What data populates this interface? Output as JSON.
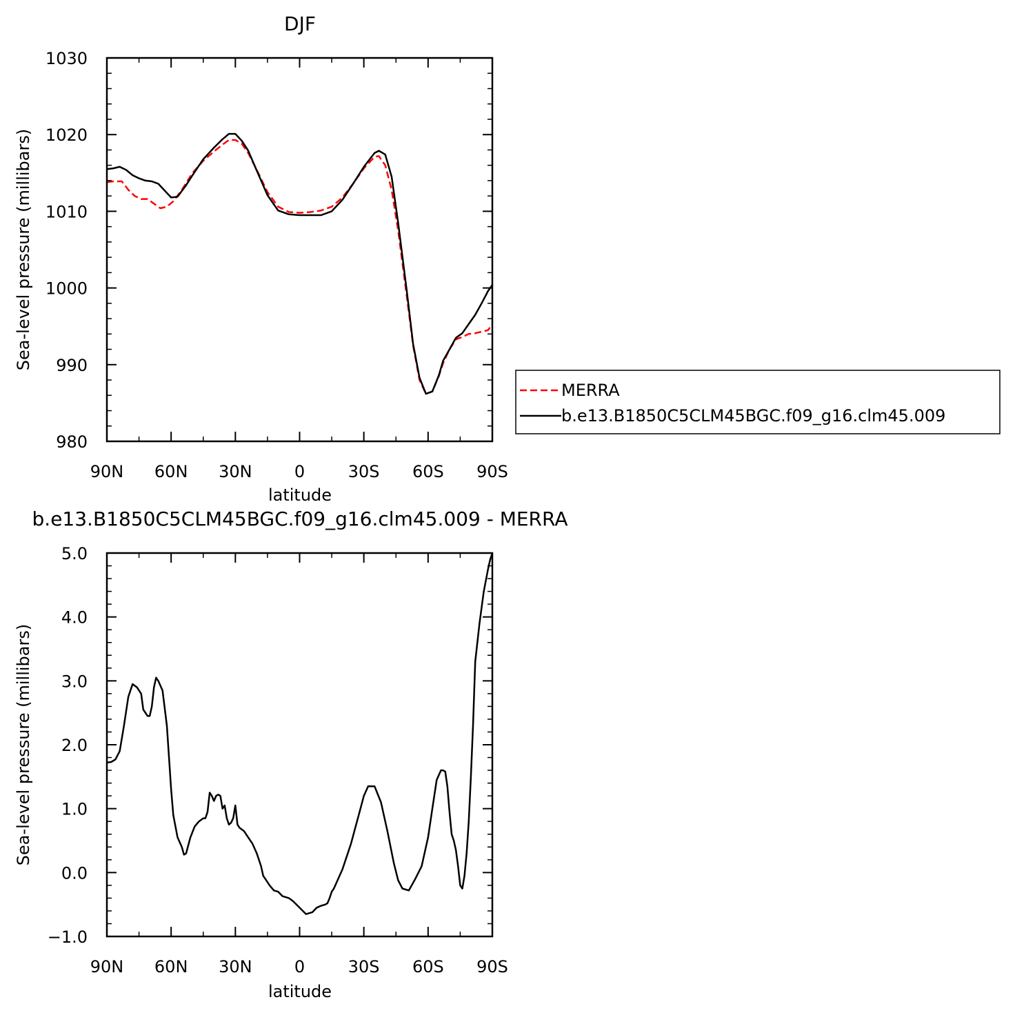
{
  "chart_data": [
    {
      "type": "line",
      "title": "DJF",
      "xlabel": "latitude",
      "ylabel": "Sea-level pressure (millibars)",
      "xlim": [
        90,
        -90
      ],
      "ylim": [
        980,
        1030
      ],
      "x_ticks": [
        90,
        60,
        30,
        0,
        -30,
        -60,
        -90
      ],
      "x_tick_labels": [
        "90N",
        "60N",
        "30N",
        "0",
        "30S",
        "60S",
        "90S"
      ],
      "y_ticks": [
        980,
        990,
        1000,
        1010,
        1020,
        1030
      ],
      "y_tick_labels": [
        "980",
        "990",
        "1000",
        "1010",
        "1020",
        "1030"
      ],
      "legend": {
        "placement": "right"
      },
      "series": [
        {
          "name": "MERRA",
          "color": "#ff0000",
          "dash": "dashed",
          "x": [
            90,
            87,
            83,
            80,
            77,
            74,
            71,
            68,
            65,
            62,
            59,
            55,
            50,
            45,
            40,
            36,
            33,
            30,
            27,
            24,
            20,
            15,
            10,
            5,
            0,
            -5,
            -10,
            -15,
            -20,
            -25,
            -30,
            -35,
            -37,
            -40,
            -43,
            -46,
            -50,
            -53,
            -56,
            -59,
            -62,
            -65,
            -67,
            -70,
            -73,
            -76,
            -79,
            -82,
            -85,
            -88,
            -90
          ],
          "values": [
            1013.8,
            1013.9,
            1013.9,
            1012.8,
            1012.0,
            1011.6,
            1011.6,
            1011.0,
            1010.4,
            1010.6,
            1011.3,
            1012.8,
            1015.0,
            1016.6,
            1017.8,
            1018.7,
            1019.3,
            1019.3,
            1018.8,
            1017.6,
            1015.4,
            1012.5,
            1010.6,
            1009.9,
            1009.8,
            1009.9,
            1010.1,
            1010.6,
            1011.8,
            1013.6,
            1015.6,
            1017.1,
            1017.2,
            1016.0,
            1012.8,
            1007.5,
            999.0,
            992.5,
            988.0,
            986.2,
            986.5,
            988.5,
            990.2,
            992.0,
            993.3,
            993.6,
            994.0,
            994.1,
            994.3,
            994.5,
            995.3
          ]
        },
        {
          "name": "b.e13.B1850C5CLM45BGC.f09_g16.clm45.009",
          "color": "#000000",
          "dash": "solid",
          "x": [
            90,
            87,
            84,
            81,
            78,
            75,
            72,
            69,
            66,
            63,
            60,
            57,
            53,
            50,
            45,
            40,
            36,
            33,
            30,
            27,
            24,
            20,
            15,
            10,
            5,
            0,
            -5,
            -10,
            -15,
            -20,
            -25,
            -30,
            -35,
            -37,
            -40,
            -43,
            -46,
            -50,
            -53,
            -56,
            -59,
            -62,
            -65,
            -67,
            -70,
            -73,
            -76,
            -79,
            -82,
            -85,
            -88,
            -90
          ],
          "values": [
            1015.5,
            1015.6,
            1015.8,
            1015.4,
            1014.7,
            1014.3,
            1014.0,
            1013.9,
            1013.6,
            1012.7,
            1011.8,
            1011.9,
            1013.4,
            1014.7,
            1016.8,
            1018.3,
            1019.4,
            1020.1,
            1020.1,
            1019.2,
            1017.9,
            1015.3,
            1012.1,
            1010.1,
            1009.6,
            1009.5,
            1009.5,
            1009.5,
            1010.0,
            1011.5,
            1013.6,
            1015.8,
            1017.6,
            1017.9,
            1017.4,
            1014.5,
            1008.5,
            999.7,
            992.7,
            988.3,
            986.2,
            986.5,
            988.6,
            990.5,
            992.0,
            993.5,
            994.1,
            995.3,
            996.5,
            998.0,
            999.6,
            1000.4
          ]
        }
      ]
    },
    {
      "type": "line",
      "title": "b.e13.B1850C5CLM45BGC.f09_g16.clm45.009 - MERRA",
      "xlabel": "latitude",
      "ylabel": "Sea-level pressure (millibars)",
      "xlim": [
        90,
        -90
      ],
      "ylim": [
        -1.0,
        5.0
      ],
      "x_ticks": [
        90,
        60,
        30,
        0,
        -30,
        -60,
        -90
      ],
      "x_tick_labels": [
        "90N",
        "60N",
        "30N",
        "0",
        "30S",
        "60S",
        "90S"
      ],
      "y_ticks": [
        -1.0,
        0.0,
        1.0,
        2.0,
        3.0,
        4.0,
        5.0
      ],
      "y_tick_labels": [
        "-1.0",
        "0.0",
        "1.0",
        "2.0",
        "3.0",
        "4.0",
        "5.0"
      ],
      "series": [
        {
          "color": "#000000",
          "dash": "solid",
          "x": [
            90,
            88,
            86,
            84,
            82,
            80,
            79,
            78,
            76,
            74,
            73,
            71,
            70,
            69,
            68,
            67,
            66,
            64,
            62,
            61,
            60,
            59,
            57,
            55,
            54,
            53,
            51,
            49,
            47,
            45,
            44,
            43,
            42,
            41,
            40,
            39,
            38,
            37,
            36,
            35,
            34,
            33,
            32,
            31,
            30,
            29,
            28,
            26,
            24,
            22,
            20,
            18,
            17,
            16,
            14,
            12,
            10,
            8,
            5,
            3,
            0,
            -3,
            -6,
            -8,
            -10,
            -12,
            -13,
            -14,
            -15,
            -16,
            -18,
            -20,
            -22,
            -24,
            -26,
            -28,
            -30,
            -32,
            -35,
            -38,
            -41,
            -44,
            -46,
            -48,
            -51,
            -54,
            -57,
            -60,
            -62,
            -64,
            -66,
            -67,
            -68,
            -69,
            -70,
            -71,
            -72,
            -73,
            -74,
            -75,
            -76,
            -77,
            -78,
            -79,
            -80,
            -81,
            -82,
            -84,
            -86,
            -88,
            -89,
            -90
          ],
          "values": [
            1.72,
            1.73,
            1.77,
            1.9,
            2.3,
            2.75,
            2.85,
            2.95,
            2.9,
            2.8,
            2.55,
            2.45,
            2.45,
            2.6,
            2.9,
            3.05,
            3.0,
            2.85,
            2.3,
            1.8,
            1.3,
            0.9,
            0.55,
            0.4,
            0.28,
            0.3,
            0.55,
            0.72,
            0.8,
            0.85,
            0.85,
            0.95,
            1.25,
            1.2,
            1.12,
            1.2,
            1.22,
            1.2,
            1.0,
            1.05,
            0.85,
            0.75,
            0.78,
            0.85,
            1.05,
            0.75,
            0.7,
            0.65,
            0.55,
            0.45,
            0.3,
            0.1,
            -0.05,
            -0.1,
            -0.2,
            -0.28,
            -0.3,
            -0.37,
            -0.4,
            -0.45,
            -0.55,
            -0.65,
            -0.62,
            -0.55,
            -0.52,
            -0.5,
            -0.48,
            -0.4,
            -0.3,
            -0.25,
            -0.1,
            0.05,
            0.25,
            0.45,
            0.7,
            0.95,
            1.2,
            1.35,
            1.35,
            1.1,
            0.65,
            0.15,
            -0.12,
            -0.25,
            -0.28,
            -0.1,
            0.1,
            0.55,
            1.0,
            1.45,
            1.6,
            1.6,
            1.58,
            1.35,
            0.95,
            0.6,
            0.5,
            0.35,
            0.1,
            -0.2,
            -0.25,
            -0.05,
            0.3,
            0.8,
            1.5,
            2.3,
            3.3,
            3.9,
            4.4,
            4.75,
            4.9,
            5.0
          ]
        }
      ]
    }
  ]
}
